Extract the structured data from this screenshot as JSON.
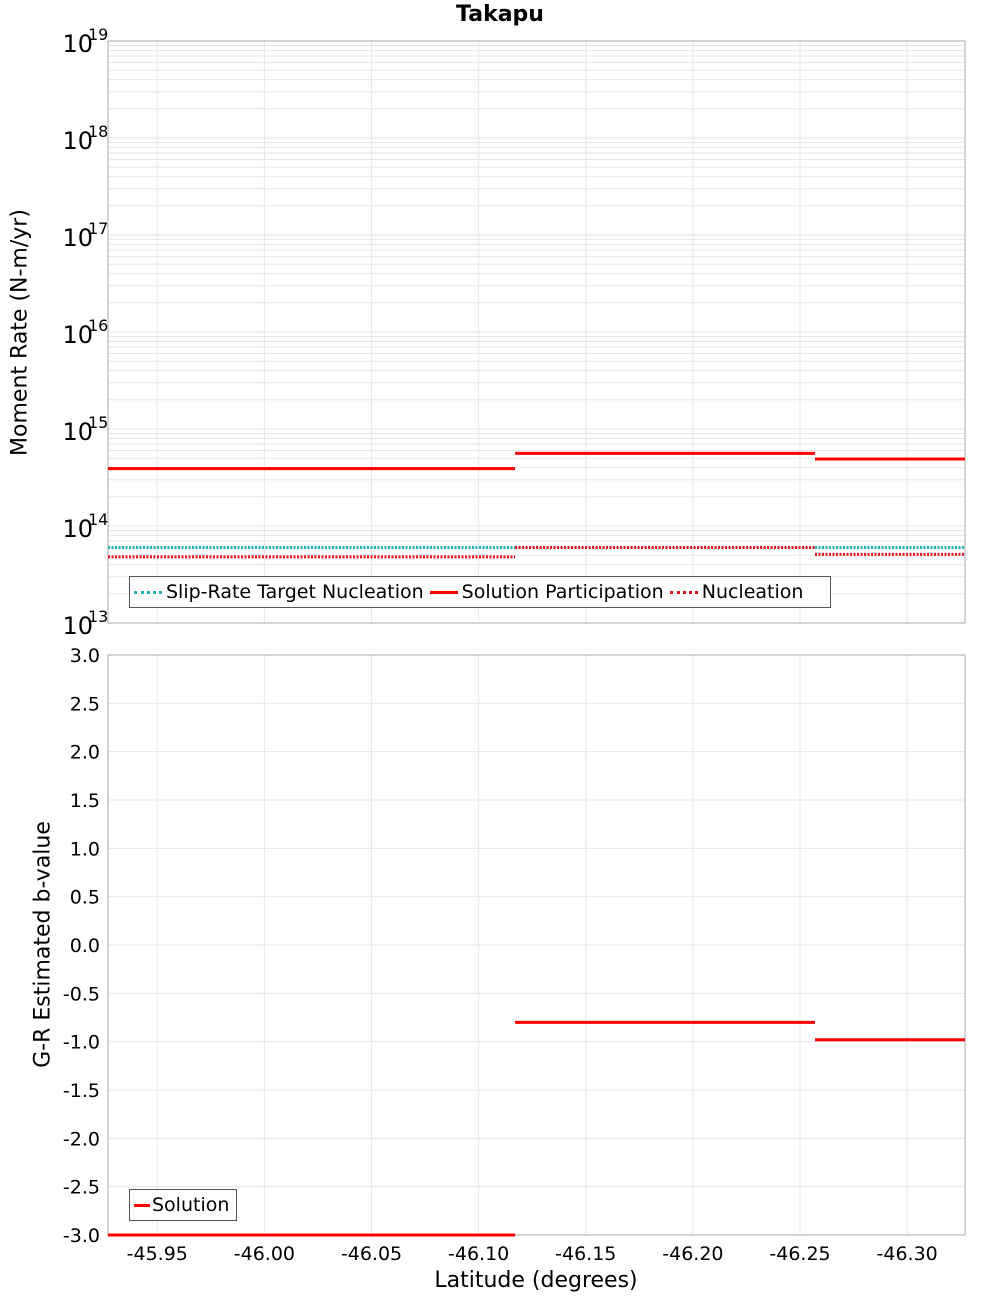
{
  "title": "Takapu",
  "colors": {
    "solution": "#ff0000",
    "target": "#1fb5b5",
    "nucleation": "#e8101c",
    "grid": "#e6e6e6",
    "frame": "#aaaaaa"
  },
  "chart_data": [
    {
      "type": "line",
      "subtype": "step",
      "title": "Takapu",
      "xlabel": "Latitude (degrees)",
      "ylabel": "Moment Rate (N-m/yr)",
      "yscale": "log",
      "ylim": [
        10000000000000.0,
        1e+19
      ],
      "xlim": [
        -45.927,
        -46.327
      ],
      "x_reversed": true,
      "yticks": [
        "10^13",
        "10^14",
        "10^15",
        "10^16",
        "10^17",
        "10^18",
        "10^19"
      ],
      "ytick_labels": [
        {
          "base": "10",
          "exp": "19"
        },
        {
          "base": "10",
          "exp": "18"
        },
        {
          "base": "10",
          "exp": "17"
        },
        {
          "base": "10",
          "exp": "16"
        },
        {
          "base": "10",
          "exp": "15"
        },
        {
          "base": "10",
          "exp": "14"
        },
        {
          "base": "10",
          "exp": "13"
        }
      ],
      "grid": true,
      "legend_position": "lower-left",
      "segment_bounds": [
        [
          -45.927,
          -46.117
        ],
        [
          -46.117,
          -46.257
        ],
        [
          -46.257,
          -46.327
        ]
      ],
      "series": [
        {
          "name": "Slip-Rate Target Nucleation",
          "style": "dotted",
          "color": "#1fb5b5",
          "values": [
            60000000000000.0,
            60000000000000.0,
            60000000000000.0
          ]
        },
        {
          "name": "Solution Participation",
          "style": "solid",
          "color": "#ff0000",
          "values": [
            390000000000000.0,
            560000000000000.0,
            490000000000000.0
          ]
        },
        {
          "name": "Nucleation",
          "style": "dotted",
          "color": "#e8101c",
          "values": [
            48000000000000.0,
            60000000000000.0,
            51000000000000.0
          ]
        }
      ]
    },
    {
      "type": "line",
      "subtype": "step",
      "xlabel": "Latitude (degrees)",
      "ylabel": "G-R Estimated b-value",
      "ylim": [
        -3.0,
        3.0
      ],
      "xlim": [
        -45.927,
        -46.327
      ],
      "x_reversed": true,
      "yticks": [
        "3.0",
        "2.5",
        "2.0",
        "1.5",
        "1.0",
        "0.5",
        "0.0",
        "-0.5",
        "-1.0",
        "-1.5",
        "-2.0",
        "-2.5",
        "-3.0"
      ],
      "xticks": [
        "-45.95",
        "-46.00",
        "-46.05",
        "-46.10",
        "-46.15",
        "-46.20",
        "-46.25",
        "-46.30"
      ],
      "grid": true,
      "legend_position": "lower-left",
      "segment_bounds": [
        [
          -45.927,
          -46.117
        ],
        [
          -46.117,
          -46.257
        ],
        [
          -46.257,
          -46.327
        ]
      ],
      "series": [
        {
          "name": "Solution",
          "style": "solid",
          "color": "#ff0000",
          "values": [
            -3.0,
            -0.8,
            -0.98
          ]
        }
      ]
    }
  ],
  "top": {
    "ylabel": "Moment Rate (N-m/yr)",
    "legend": [
      "Slip-Rate Target Nucleation",
      "Solution Participation",
      "Nucleation"
    ]
  },
  "bottom": {
    "ylabel": "G-R Estimated b-value",
    "xlabel": "Latitude (degrees)",
    "legend": [
      "Solution"
    ]
  }
}
